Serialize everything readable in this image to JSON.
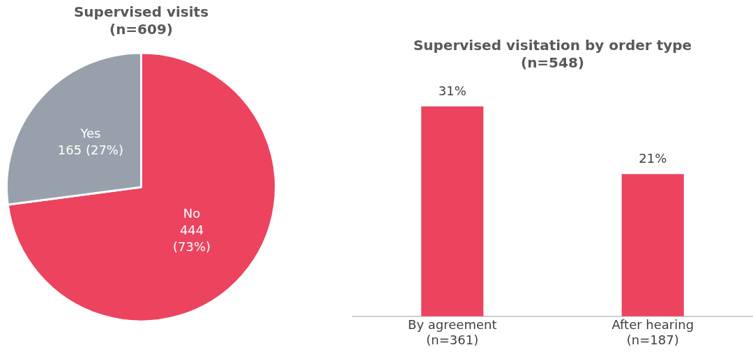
{
  "chart_data": [
    {
      "type": "pie",
      "title": "Supervised visits\n(n=609)",
      "categories": [
        "No",
        "Yes"
      ],
      "values": [
        444,
        165
      ],
      "colors": [
        "#ec435e",
        "#98a1ab"
      ],
      "value_labels": [
        "444\n(73%)",
        "165 (27%)"
      ],
      "legend": false
    },
    {
      "type": "bar",
      "title": "Supervised visitation by order type\n(n=548)",
      "categories": [
        "By agreement\n(n=361)",
        "After hearing\n(n=187)"
      ],
      "values": [
        31,
        21
      ],
      "color": "#ec435e",
      "value_labels": [
        "31%",
        "21%"
      ],
      "tick_labels": "x",
      "grid": false,
      "legend": false
    }
  ]
}
